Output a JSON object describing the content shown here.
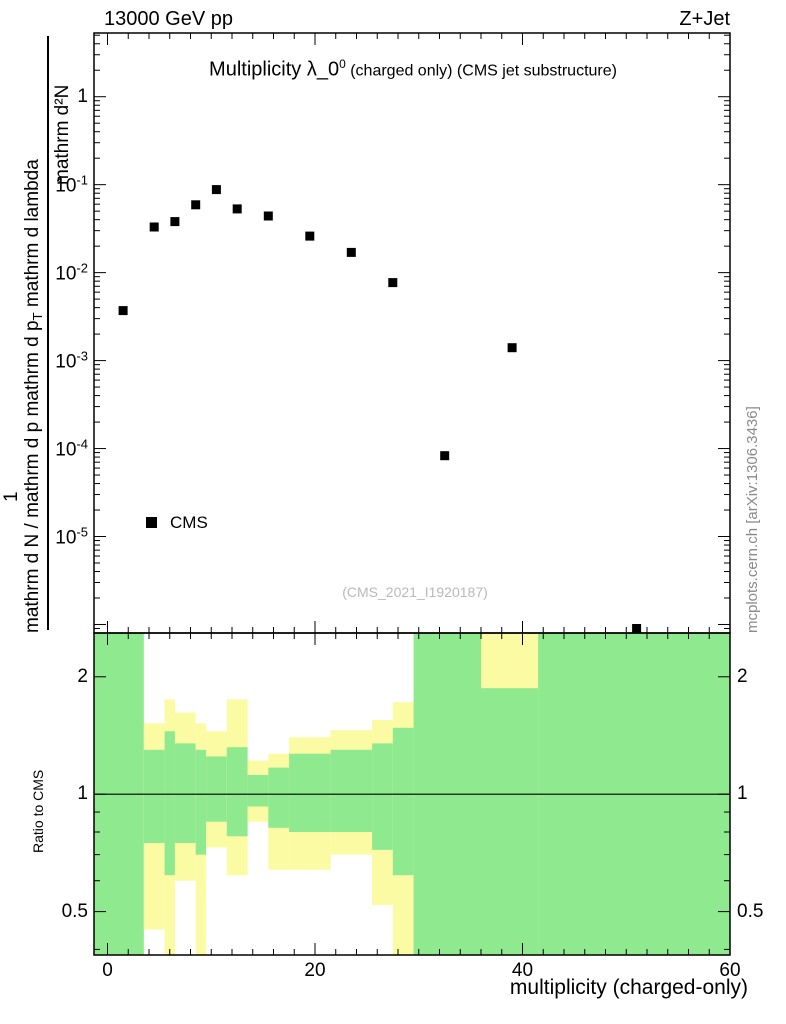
{
  "header": {
    "left": "13000 GeV pp",
    "right": "Z+Jet"
  },
  "main_plot": {
    "title_prefix": "Multiplicity λ_0",
    "title_sup": "0",
    "title_suffix": " (charged only) (CMS jet substructure)",
    "legend_label": "CMS",
    "watermark": "(CMS_2021_I1920187)",
    "ylabel": {
      "numerator": "mathrm d²N",
      "one": "1",
      "denominator_pre": "mathrm d N / mathrm d p mathrm d p",
      "denominator_sub": "T",
      "denominator_post": " mathrm d lambda"
    }
  },
  "ratio_plot": {
    "ylabel": "Ratio to CMS"
  },
  "xaxis": {
    "label": "multiplicity (charged-only)"
  },
  "sidebar": {
    "text": "mcplots.cern.ch [arXiv:1306.3436]"
  },
  "colors": {
    "yellow": "#fbfba4",
    "green": "#8fe98f",
    "marker": "#000000"
  },
  "chart_data": [
    {
      "type": "scatter",
      "title": "Multiplicity λ_0^0 (charged only) (CMS jet substructure)",
      "xlabel": "multiplicity (charged-only)",
      "ylabel": "mathrm d²N / mathrm d N / mathrm d p mathrm d p_T mathrm d lambda",
      "xlim": [
        -1.3,
        60
      ],
      "ylim": [
        8e-07,
        5.3
      ],
      "yscale": "log",
      "x_minor_step": 2,
      "xticks": [
        {
          "v": 0,
          "t": "0"
        },
        {
          "v": 20,
          "t": "20"
        },
        {
          "v": 40,
          "t": "40"
        },
        {
          "v": 60,
          "t": "60"
        }
      ],
      "yticks": [
        {
          "v": 1,
          "t": "1"
        },
        {
          "v": 0.1,
          "t": "10",
          "e": "-1"
        },
        {
          "v": 0.01,
          "t": "10",
          "e": "-2"
        },
        {
          "v": 0.001,
          "t": "10",
          "e": "-3"
        },
        {
          "v": 0.0001,
          "t": "10",
          "e": "-4"
        },
        {
          "v": 1e-05,
          "t": "10",
          "e": "-5"
        }
      ],
      "series": [
        {
          "name": "CMS",
          "marker": "filled-square",
          "color": "#000000",
          "points": [
            [
              1.5,
              0.0037
            ],
            [
              4.5,
              0.033
            ],
            [
              6.5,
              0.038
            ],
            [
              8.5,
              0.059
            ],
            [
              10.5,
              0.088
            ],
            [
              12.5,
              0.053
            ],
            [
              15.5,
              0.044
            ],
            [
              19.5,
              0.026
            ],
            [
              23.5,
              0.017
            ],
            [
              27.5,
              0.0077
            ],
            [
              32.5,
              8.3e-05
            ],
            [
              39,
              0.0014
            ],
            [
              51,
              9e-07
            ]
          ]
        }
      ]
    },
    {
      "type": "band-ratio",
      "ylabel": "Ratio to CMS",
      "xlim": [
        -1.3,
        60
      ],
      "ylim": [
        0.387,
        2.59
      ],
      "yscale": "log",
      "reference_line_y": 1,
      "yticks": [
        {
          "v": 2,
          "t": "2"
        },
        {
          "v": 1,
          "t": "1"
        },
        {
          "v": 0.5,
          "t": "0.5"
        }
      ],
      "yminor": [
        0.4,
        0.6,
        0.7,
        0.8,
        0.9
      ],
      "bins": [
        {
          "x0": -1.3,
          "x1": 3.5,
          "yellow": [
            0.387,
            2.59
          ],
          "green": [
            0.387,
            2.59
          ]
        },
        {
          "x0": 3.5,
          "x1": 5.5,
          "yellow": [
            0.45,
            1.52
          ],
          "green": [
            0.75,
            1.3
          ]
        },
        {
          "x0": 5.5,
          "x1": 6.5,
          "yellow": [
            0.387,
            1.75
          ],
          "green": [
            0.62,
            1.45
          ]
        },
        {
          "x0": 6.5,
          "x1": 8.5,
          "yellow": [
            0.6,
            1.62
          ],
          "green": [
            0.75,
            1.35
          ]
        },
        {
          "x0": 8.5,
          "x1": 9.5,
          "yellow": [
            0.387,
            1.52
          ],
          "green": [
            0.7,
            1.3
          ]
        },
        {
          "x0": 9.5,
          "x1": 11.5,
          "yellow": [
            0.73,
            1.45
          ],
          "green": [
            0.85,
            1.25
          ]
        },
        {
          "x0": 11.5,
          "x1": 13.5,
          "yellow": [
            0.62,
            1.75
          ],
          "green": [
            0.78,
            1.32
          ]
        },
        {
          "x0": 13.5,
          "x1": 15.5,
          "yellow": [
            0.85,
            1.22
          ],
          "green": [
            0.93,
            1.12
          ]
        },
        {
          "x0": 15.5,
          "x1": 17.5,
          "yellow": [
            0.64,
            1.27
          ],
          "green": [
            0.82,
            1.17
          ]
        },
        {
          "x0": 17.5,
          "x1": 21.5,
          "yellow": [
            0.64,
            1.4
          ],
          "green": [
            0.8,
            1.27
          ]
        },
        {
          "x0": 21.5,
          "x1": 25.5,
          "yellow": [
            0.7,
            1.46
          ],
          "green": [
            0.8,
            1.3
          ]
        },
        {
          "x0": 25.5,
          "x1": 27.5,
          "yellow": [
            0.52,
            1.55
          ],
          "green": [
            0.72,
            1.35
          ]
        },
        {
          "x0": 27.5,
          "x1": 29.5,
          "yellow": [
            0.387,
            1.72
          ],
          "green": [
            0.62,
            1.48
          ]
        },
        {
          "x0": 29.5,
          "x1": 36,
          "yellow": [
            0.387,
            2.59
          ],
          "green": [
            0.387,
            2.59
          ]
        },
        {
          "x0": 36,
          "x1": 41.5,
          "yellow": [
            0.387,
            2.59
          ],
          "green": [
            0.387,
            1.87
          ]
        },
        {
          "x0": 41.5,
          "x1": 60,
          "yellow": [
            0.387,
            2.59
          ],
          "green": [
            0.387,
            2.59
          ]
        }
      ]
    }
  ]
}
